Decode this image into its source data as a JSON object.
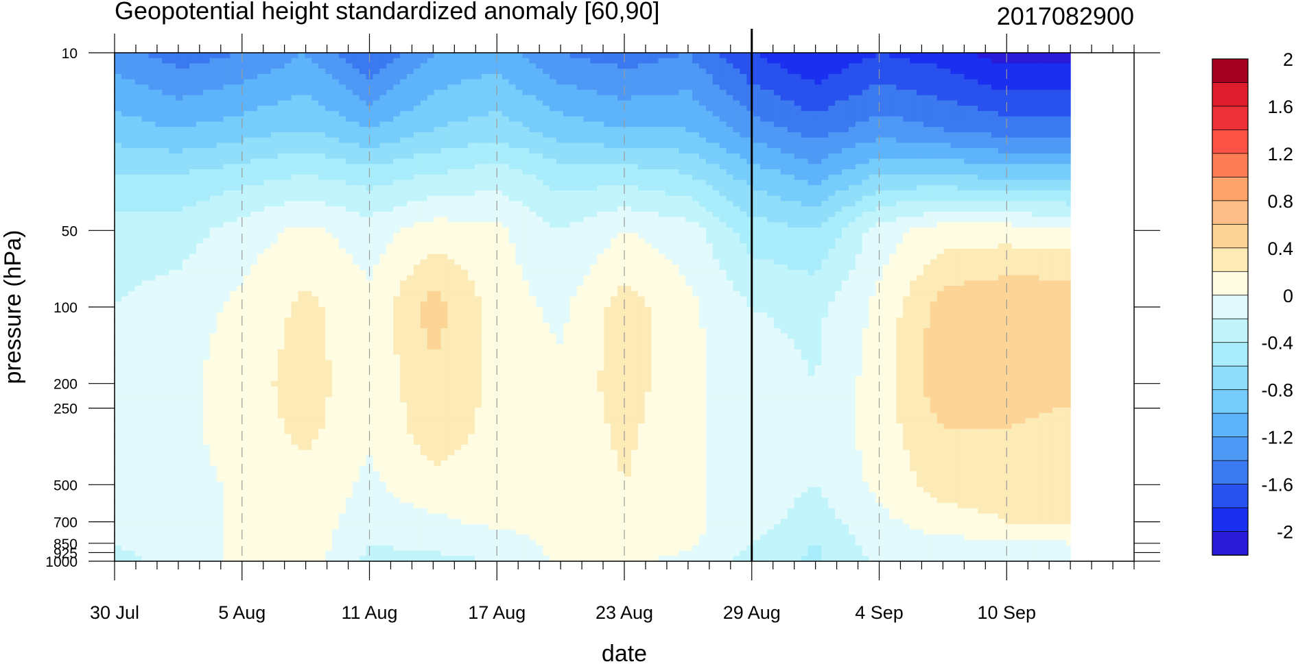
{
  "chart_data": {
    "type": "heatmap",
    "title": "Geopotential height standardized anomaly [60,90]",
    "subtitle": "2017082900",
    "xlabel": "date",
    "ylabel": "pressure (hPa)",
    "x_range_days_from_30_Jul": [
      0,
      45
    ],
    "x_tick_labels": [
      {
        "label": "30 Jul",
        "day": 0
      },
      {
        "label": "5 Aug",
        "day": 6
      },
      {
        "label": "11 Aug",
        "day": 12
      },
      {
        "label": "17 Aug",
        "day": 18
      },
      {
        "label": "23 Aug",
        "day": 24
      },
      {
        "label": "29 Aug",
        "day": 30
      },
      {
        "label": "4 Sep",
        "day": 36
      },
      {
        "label": "10 Sep",
        "day": 42
      }
    ],
    "y_scale": "log",
    "ylim": [
      1000,
      10
    ],
    "y_tick_labels": [
      "10",
      "50",
      "100",
      "200",
      "250",
      "500",
      "700",
      "850",
      "925",
      "1000"
    ],
    "y_tick_values": [
      10,
      50,
      100,
      200,
      250,
      500,
      700,
      850,
      925,
      1000
    ],
    "analysis_date_marker": "29 Aug",
    "colorbar": {
      "labels": [
        "2",
        "1.6",
        "1.2",
        "0.8",
        "0.4",
        "0",
        "-0.4",
        "-0.8",
        "-1.2",
        "-1.6",
        "-2"
      ],
      "label_values": [
        2,
        1.6,
        1.2,
        0.8,
        0.4,
        0,
        -0.4,
        -0.8,
        -1.2,
        -1.6,
        -2
      ],
      "levels": [
        -2.2,
        -2.0,
        -1.8,
        -1.6,
        -1.4,
        -1.2,
        -1.0,
        -0.8,
        -0.6,
        -0.4,
        -0.2,
        0,
        0.2,
        0.4,
        0.6,
        0.8,
        1.0,
        1.2,
        1.4,
        1.6,
        1.8,
        2.0
      ],
      "colors": [
        "#2a1bd8",
        "#1a2ff0",
        "#2851ee",
        "#3a79f0",
        "#4e99f5",
        "#5db4fb",
        "#76cdfc",
        "#90def9",
        "#a9ecfb",
        "#c2f4fb",
        "#e2fafb",
        "#fffce4",
        "#fcebb6",
        "#fcd496",
        "#fdbf8a",
        "#fda46b",
        "#fc7c56",
        "#fb5246",
        "#ee3039",
        "#dd1c2e",
        "#a4001f"
      ]
    },
    "days": [
      0,
      3,
      6,
      9,
      12,
      15,
      18,
      21,
      24,
      27,
      30,
      33,
      36,
      39,
      42,
      45
    ],
    "pressure_levels": [
      10,
      20,
      30,
      50,
      100,
      200,
      300,
      500,
      700,
      850,
      1000
    ],
    "values": [
      [
        -1.3,
        -1.5,
        -1.4,
        -1.2,
        -1.6,
        -1.2,
        -1.1,
        -1.4,
        -1.5,
        -1.4,
        -1.8,
        -2.0,
        -1.8,
        -1.9,
        -2.1,
        -2.1
      ],
      [
        -0.9,
        -1.0,
        -0.9,
        -0.8,
        -1.0,
        -0.8,
        -0.7,
        -0.9,
        -1.0,
        -1.0,
        -1.3,
        -1.5,
        -1.3,
        -1.4,
        -1.5,
        -1.5
      ],
      [
        -0.6,
        -0.6,
        -0.5,
        -0.4,
        -0.5,
        -0.4,
        -0.3,
        -0.5,
        -0.5,
        -0.6,
        -0.9,
        -1.1,
        -0.8,
        -0.8,
        -0.9,
        -0.9
      ],
      [
        -0.3,
        -0.3,
        -0.1,
        0.05,
        -0.1,
        0.1,
        0.05,
        -0.2,
        0.0,
        -0.1,
        -0.5,
        -0.6,
        -0.1,
        0.1,
        0.1,
        0.05
      ],
      [
        -0.2,
        -0.1,
        0.05,
        0.25,
        0.05,
        0.5,
        0.1,
        -0.05,
        0.3,
        0.05,
        -0.2,
        -0.25,
        0.05,
        0.5,
        0.6,
        0.6
      ],
      [
        -0.1,
        -0.05,
        0.1,
        0.3,
        0.05,
        0.35,
        0.15,
        0.05,
        0.3,
        0.05,
        -0.1,
        -0.2,
        0.1,
        0.55,
        0.55,
        0.5
      ],
      [
        -0.1,
        -0.05,
        0.1,
        0.25,
        0.05,
        0.3,
        0.15,
        0.05,
        0.25,
        0.05,
        -0.1,
        -0.15,
        0.1,
        0.4,
        0.4,
        0.3
      ],
      [
        -0.15,
        -0.1,
        0.05,
        0.15,
        -0.05,
        0.15,
        0.1,
        0.0,
        0.2,
        0.05,
        -0.1,
        -0.2,
        0.05,
        0.3,
        0.3,
        0.25
      ],
      [
        -0.15,
        -0.1,
        0.05,
        0.1,
        -0.1,
        -0.05,
        0.05,
        0.05,
        0.1,
        0.05,
        -0.1,
        -0.3,
        -0.05,
        0.1,
        0.2,
        0.2
      ],
      [
        -0.2,
        -0.1,
        0.05,
        0.15,
        -0.2,
        -0.15,
        -0.1,
        0.05,
        0.05,
        0.05,
        -0.2,
        -0.4,
        -0.1,
        -0.05,
        -0.05,
        0.0
      ],
      [
        -0.25,
        -0.15,
        0.05,
        0.1,
        -0.25,
        -0.25,
        -0.2,
        0.05,
        0.05,
        -0.05,
        -0.3,
        -0.45,
        -0.15,
        -0.15,
        -0.1,
        -0.05
      ]
    ]
  }
}
